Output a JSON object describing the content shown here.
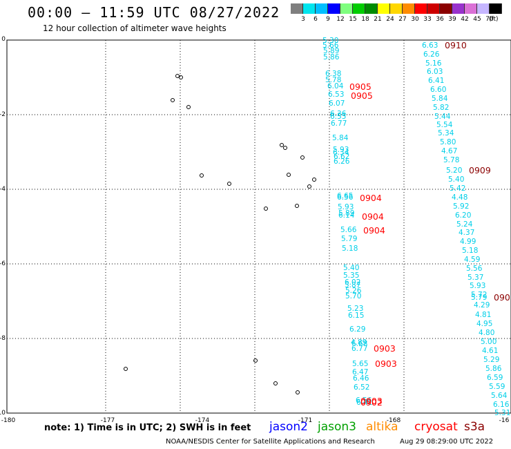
{
  "header": {
    "title": "00:00 – 11:59 UTC 08/27/2022",
    "subtitle": "12 hour collection of altimeter wave heights"
  },
  "legend": {
    "colors": [
      "#7f7f7f",
      "#00e5ee",
      "#00bfff",
      "#0000ff",
      "#7fff7f",
      "#00cd00",
      "#008b00",
      "#ffff00",
      "#ffd700",
      "#ff8c00",
      "#ff0000",
      "#cd0000",
      "#8b0000",
      "#9932cc",
      "#da70d6",
      "#c6b6ff",
      "#000000"
    ],
    "labels": [
      "3",
      "6",
      "9",
      "12",
      "15",
      "18",
      "21",
      "24",
      "27",
      "30",
      "33",
      "36",
      "39",
      "42",
      "45",
      "70"
    ],
    "unit": "(ft)"
  },
  "axes": {
    "x_ticks": [
      "-180",
      "-177",
      "-174",
      "-171",
      "-168",
      "-16"
    ],
    "y_ticks": [
      "0",
      "-2",
      "-4",
      "-6",
      "-8",
      "-10"
    ]
  },
  "colors": {
    "track": "#00cfe8",
    "time_red": "#ff0000",
    "time_dark": "#8b0000"
  },
  "tracks": {
    "left": [
      "5.30",
      "5.66",
      "5.89",
      "5.86",
      "6.38",
      "5.78",
      "6.04",
      "6.53",
      "6.07",
      "6.36",
      "6.55",
      "6.77",
      "5.84",
      "5.93",
      "6.34",
      "6.62",
      "6.26",
      "6.65",
      "6.56",
      "5.93",
      "5.89",
      "6.14",
      "5.66",
      "5.79",
      "5.18",
      "5.40",
      "5.35",
      "6.02",
      "5.87",
      "5.26",
      "5.70",
      "5.23",
      "6.15",
      "6.29",
      "4.89",
      "6.68",
      "6.77",
      "5.65",
      "6.47",
      "6.46",
      "6.52",
      "6.56",
      "6.41"
    ],
    "right": [
      "6.63",
      "6.26",
      "5.16",
      "6.03",
      "6.41",
      "6.60",
      "5.84",
      "5.82",
      "5.44",
      "5.54",
      "5.34",
      "5.80",
      "4.67",
      "5.78",
      "5.20",
      "5.40",
      "5.42",
      "4.48",
      "5.92",
      "6.20",
      "5.24",
      "4.37",
      "4.99",
      "5.18",
      "4.59",
      "5.56",
      "5.37",
      "5.93",
      "5.72",
      "5.79",
      "4.29",
      "4.81",
      "4.95",
      "4.80",
      "5.00",
      "4.61",
      "5.29",
      "5.86",
      "6.59",
      "5.59",
      "5.64",
      "6.16",
      "5.31"
    ]
  },
  "times": {
    "left": [
      "0905",
      "0905",
      "0904",
      "0904",
      "0904",
      "0903",
      "0903",
      "0903",
      "0902"
    ],
    "right": [
      "0910",
      "0909",
      "090"
    ]
  },
  "note": "note: 1) Time is in UTC; 2) SWH is in feet",
  "satellites": [
    {
      "name": "jason2",
      "color": "#0000ff"
    },
    {
      "name": "jason3",
      "color": "#00a000"
    },
    {
      "name": "altika",
      "color": "#ff8c00"
    },
    {
      "name": "cryosat",
      "color": "#ff0000"
    },
    {
      "name": "s3a",
      "color": "#8b0000"
    }
  ],
  "footer": {
    "credit": "NOAA/NESDIS Center for Satellite Applications and Research",
    "timestamp": "Aug 29 08:29:00 UTC 2022"
  }
}
